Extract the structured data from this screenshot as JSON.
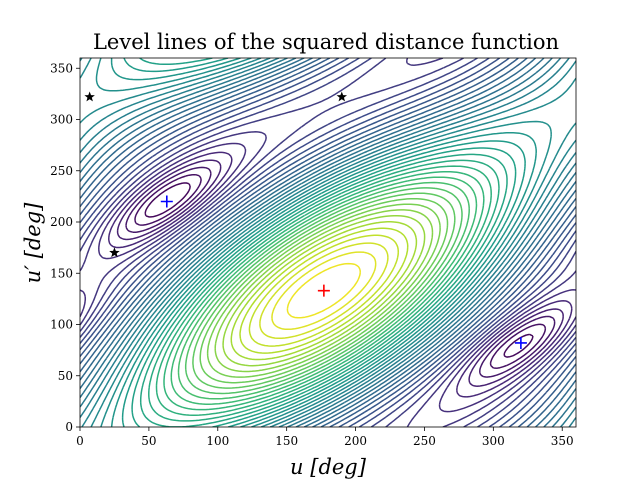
{
  "chart_data": {
    "type": "contour",
    "title": "Level lines of the squared distance function",
    "xlabel": "u [deg]",
    "ylabel": "u′ [deg]",
    "xlim": [
      0,
      360
    ],
    "ylim": [
      0,
      360
    ],
    "xticks": [
      0,
      50,
      100,
      150,
      200,
      250,
      300,
      350
    ],
    "yticks": [
      0,
      50,
      100,
      150,
      200,
      250,
      300,
      350
    ],
    "colormap": "viridis",
    "grid": false,
    "maximum_point": {
      "x": 177,
      "y": 133,
      "color": "#ff0000",
      "marker": "plus"
    },
    "minimum_points": [
      {
        "x": 63,
        "y": 220,
        "color": "#0000ff",
        "marker": "plus"
      },
      {
        "x": 320,
        "y": 82,
        "color": "#0000ff",
        "marker": "plus"
      }
    ],
    "saddle_points": [
      {
        "x": 7,
        "y": 322,
        "color": "#000000",
        "marker": "star"
      },
      {
        "x": 190,
        "y": 322,
        "color": "#000000",
        "marker": "star"
      },
      {
        "x": 25,
        "y": 170,
        "color": "#000000",
        "marker": "star"
      }
    ]
  }
}
